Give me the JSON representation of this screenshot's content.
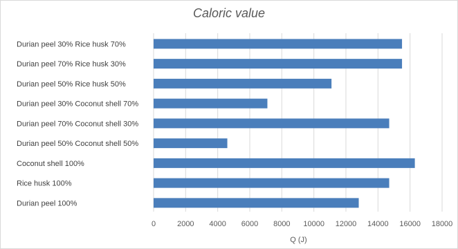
{
  "chart_data": {
    "type": "bar",
    "orientation": "horizontal",
    "title": "Caloric value",
    "xlabel": "Q (J)",
    "ylabel": "",
    "xlim": [
      0,
      18000
    ],
    "xticks": [
      0,
      2000,
      4000,
      6000,
      8000,
      10000,
      12000,
      14000,
      16000,
      18000
    ],
    "grid": true,
    "legend": "none",
    "bar_color": "#4a7ebb",
    "categories": [
      "Durian peel 30% Rice husk 70%",
      "Durian peel 70% Rice husk 30%",
      "Durian peel 50% Rice husk 50%",
      "Durian peel 30% Coconut shell 70%",
      "Durian peel 70% Coconut shell 30%",
      "Durian peel 50% Coconut shell 50%",
      "Coconut shell 100%",
      "Rice husk 100%",
      "Durian peel 100%"
    ],
    "values": [
      15500,
      15500,
      11100,
      7100,
      14700,
      4600,
      16300,
      14700,
      12800
    ]
  }
}
